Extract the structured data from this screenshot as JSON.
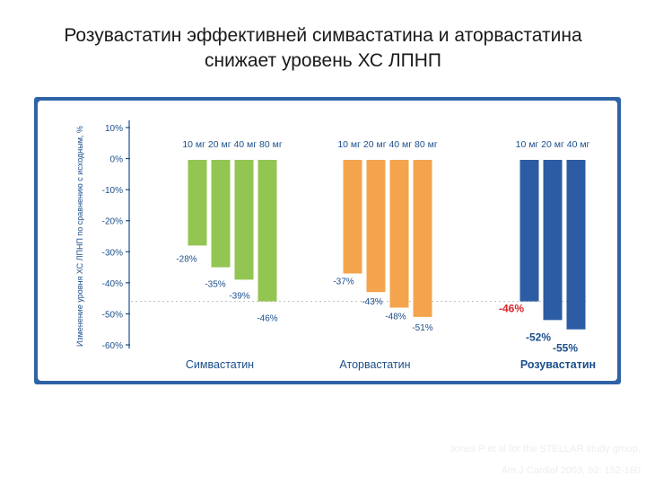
{
  "slide": {
    "title_line1": "Розувастатин эффективней симвастатина и аторвастатина",
    "title_line2": "снижает уровень ХС ЛПНП",
    "citation_line1": "Jones P et al for the STELLAR study group.",
    "citation_line2": "Am J Cardiol 2003; 92: 152-160"
  },
  "colors": {
    "frame": "#2e63a6",
    "simvastatin": "#93c553",
    "atorvastatin": "#f4a44d",
    "rosuvastatin": "#2c5ca3",
    "highlight_label": "#d8262a",
    "axis": "#1b4f8c"
  },
  "chart_data": {
    "type": "bar",
    "title": "",
    "ylabel": "Изменение уровня ХС ЛПНП по сравнению с исходным, %",
    "xlabel": "",
    "ylim": [
      -60,
      10
    ],
    "yticks": [
      10,
      0,
      -10,
      -20,
      -30,
      -40,
      -50,
      -60
    ],
    "ytick_labels": [
      "10%",
      "0%",
      "-10%",
      "-20%",
      "-30%",
      "-40%",
      "-50%",
      "-60%"
    ],
    "reference_line": -46,
    "groups": [
      {
        "name": "Симвастатин",
        "color_key": "simvastatin",
        "doses": [
          "10 мг",
          "20 мг",
          "40 мг",
          "80 мг"
        ],
        "values": [
          -28,
          -35,
          -39,
          -46
        ],
        "labels": [
          "-28%",
          "-35%",
          "-39%",
          "-46%"
        ]
      },
      {
        "name": "Аторвастатин",
        "color_key": "atorvastatin",
        "doses": [
          "10 мг",
          "20 мг",
          "40 мг",
          "80 мг"
        ],
        "values": [
          -37,
          -43,
          -48,
          -51
        ],
        "labels": [
          "-37%",
          "-43%",
          "-48%",
          "-51%"
        ]
      },
      {
        "name": "Розувастатин",
        "color_key": "rosuvastatin",
        "doses": [
          "10 мг",
          "20 мг",
          "40 мг"
        ],
        "values": [
          -46,
          -52,
          -55
        ],
        "labels": [
          "-46%",
          "-52%",
          "-55%"
        ]
      }
    ]
  }
}
